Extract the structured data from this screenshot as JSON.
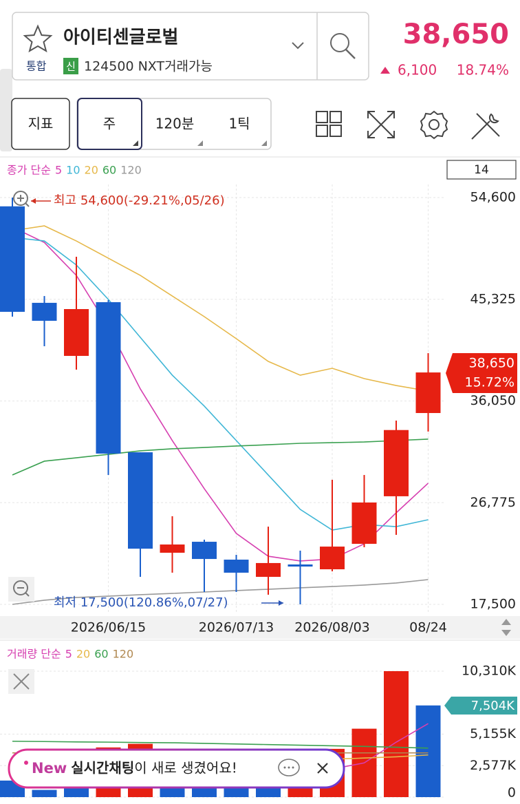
{
  "header": {
    "name": "아이티센글로벌",
    "market": "통합",
    "badge": "신",
    "code": "124500 NXT거래가능",
    "price": "38,650",
    "change": "6,100",
    "change_pct": "18.74%"
  },
  "toolbar": {
    "indicator": "지표",
    "periods": [
      "주",
      "120분",
      "1틱"
    ]
  },
  "banner": {
    "badge": "New",
    "highlight": "실시간채팅",
    "text": "이 새로 생겼어요!"
  },
  "chart_data": [
    {
      "type": "candlestick",
      "legend_title": "종가 단순",
      "visible_count": 14,
      "categories": [
        null,
        null,
        null,
        "2026/06/15",
        null,
        null,
        null,
        "2026/07/13",
        null,
        null,
        "2026/08/03",
        null,
        null,
        "08/24"
      ],
      "open": [
        53800,
        45000,
        40160,
        45060,
        31370,
        22210,
        23210,
        21580,
        20010,
        21140,
        20700,
        23020,
        27360,
        34950
      ],
      "high": [
        54600,
        45620,
        49200,
        45250,
        31370,
        25540,
        23400,
        22020,
        24590,
        22400,
        28860,
        29300,
        34260,
        40410
      ],
      "low": [
        43740,
        41040,
        38910,
        29300,
        20010,
        20390,
        18630,
        18630,
        18380,
        17500,
        20510,
        22710,
        23840,
        33260
      ],
      "close": [
        44180,
        43360,
        44430,
        31250,
        22580,
        22960,
        21640,
        20390,
        21270,
        20950,
        22770,
        26790,
        33400,
        38650
      ],
      "close_labels": [
        null,
        null,
        null,
        null,
        null,
        null,
        null,
        null,
        null,
        null,
        null,
        null,
        null,
        "38,650"
      ],
      "change_label": "15.72%",
      "annotations": {
        "high": "최고 54,600(-29.21%,05/26)",
        "low": "최저 17,500(120.86%,07/27)"
      },
      "ylim": [
        17500,
        54600
      ],
      "yticks": [
        {
          "value": 17500,
          "label": "17,500"
        },
        {
          "value": 26775,
          "label": "26,775"
        },
        {
          "value": 36050,
          "label": "36,050"
        },
        {
          "value": 45325,
          "label": "45,325"
        },
        {
          "value": 54600,
          "label": "54,600"
        }
      ],
      "grid": true,
      "up_color": "#e62012",
      "down_color": "#1a5fcc",
      "series": [
        {
          "name": "5",
          "color": "#d63fb0",
          "values": [
            51900,
            50500,
            47500,
            42800,
            37150,
            32440,
            28050,
            23970,
            21890,
            21460,
            21640,
            23020,
            25850,
            28550
          ]
        },
        {
          "name": "10",
          "color": "#3fb6d6",
          "values": [
            50960,
            50640,
            48450,
            45310,
            41850,
            38400,
            35580,
            32440,
            29300,
            26160,
            24280,
            24780,
            24590,
            25220
          ]
        },
        {
          "name": "20",
          "color": "#e6b84a",
          "values": [
            51580,
            52020,
            50640,
            49070,
            47500,
            45620,
            43740,
            41730,
            39660,
            38400,
            39030,
            38090,
            37460,
            36960
          ]
        },
        {
          "name": "60",
          "color": "#3aa050",
          "values": [
            29300,
            30560,
            30870,
            31180,
            31500,
            31690,
            31810,
            31940,
            32060,
            32190,
            32250,
            32310,
            32440,
            32570
          ]
        },
        {
          "name": "120",
          "color": "#999999",
          "values": [
            17500,
            17880,
            18130,
            18250,
            18380,
            18500,
            18630,
            18760,
            18880,
            19010,
            19130,
            19260,
            19450,
            19760
          ]
        }
      ]
    },
    {
      "type": "bar",
      "legend_title": "거래량 단순",
      "values": [
        1355,
        590,
        1180,
        4066,
        4360,
        2500,
        2300,
        2000,
        1900,
        2400,
        3950,
        5600,
        10310,
        7504
      ],
      "colors": [
        "#1a5fcc",
        "#1a5fcc",
        "#1a5fcc",
        "#e62012",
        "#e62012",
        "#1a5fcc",
        "#1a5fcc",
        "#1a5fcc",
        "#1a5fcc",
        "#e62012",
        "#e62012",
        "#e62012",
        "#e62012",
        "#1a5fcc"
      ],
      "value_labels": [
        null,
        null,
        null,
        null,
        null,
        null,
        null,
        null,
        null,
        null,
        null,
        null,
        null,
        "7,504K"
      ],
      "ylim": [
        0,
        10310
      ],
      "yticks": [
        0,
        {
          "value": 2577,
          "label": "2,577K"
        },
        {
          "value": 5155,
          "label": "5,155K"
        },
        {
          "value": 10310,
          "label": "10,310K"
        }
      ],
      "grid": true,
      "series": [
        {
          "name": "5",
          "color": "#d63fb0",
          "values": [
            2500,
            2400,
            2300,
            2600,
            2900,
            3000,
            2800,
            2600,
            2500,
            2300,
            2300,
            2800,
            4500,
            6020
          ]
        },
        {
          "name": "20",
          "color": "#e6b84a",
          "values": [
            2600,
            2650,
            2700,
            2750,
            2800,
            2850,
            2900,
            2950,
            3000,
            3050,
            3100,
            3200,
            3300,
            3450
          ]
        },
        {
          "name": "60",
          "color": "#3aa050",
          "values": [
            4570,
            4550,
            4520,
            4500,
            4470,
            4450,
            4400,
            4350,
            4300,
            4250,
            4200,
            4150,
            4080,
            4010
          ]
        },
        {
          "name": "120",
          "color": "#b08850",
          "values": [
            3620,
            3620,
            3620,
            3620,
            3620,
            3620,
            3620,
            3620,
            3620,
            3620,
            3620,
            3620,
            3620,
            3620
          ]
        }
      ]
    }
  ]
}
